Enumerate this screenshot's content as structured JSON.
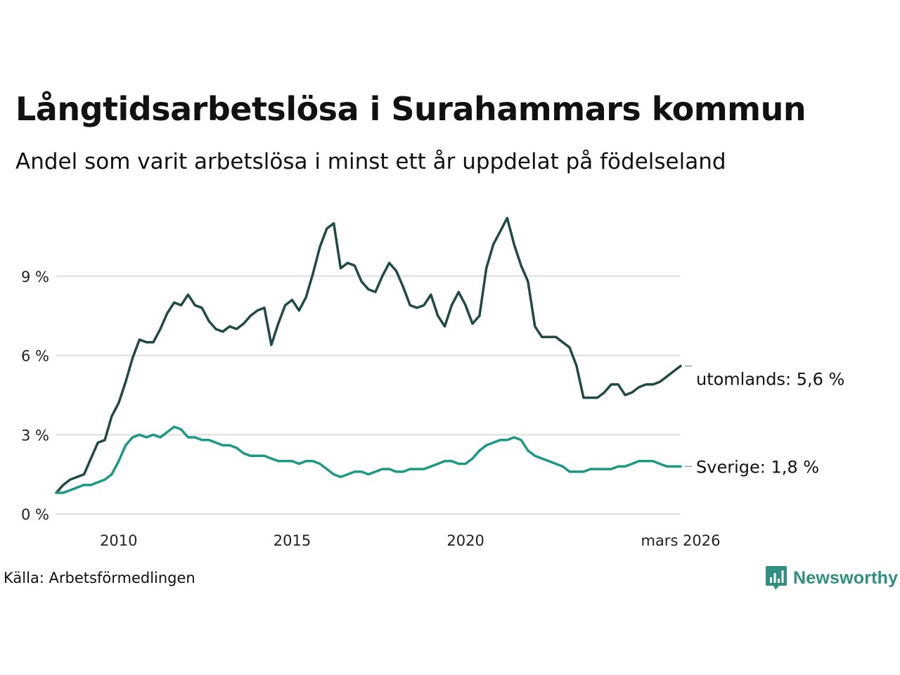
{
  "title": "Långtidsarbetslösa i Surahammars kommun",
  "subtitle": "Andel som varit arbetslösa i minst ett år uppdelat på födelseland",
  "source": "Källa: Arbetsförmedlingen",
  "brand": "Newsworthy",
  "colors": {
    "utomlands": "#1f4a45",
    "sverige": "#1b9984",
    "grid": "#dddddd",
    "brand": "#2f8f80"
  },
  "chart_data": {
    "type": "line",
    "title": "Långtidsarbetslösa i Surahammars kommun",
    "xlabel": "",
    "ylabel": "",
    "xlim": [
      2008.2,
      2026.2
    ],
    "ylim": [
      0,
      12
    ],
    "y_ticks": [
      0,
      3,
      6,
      9
    ],
    "y_tick_labels": [
      "0 %",
      "3 %",
      "6 %",
      "9 %"
    ],
    "x_ticks": [
      2010,
      2015,
      2020,
      2026.2
    ],
    "x_tick_labels": [
      "2010",
      "2015",
      "2020",
      "mars 2026"
    ],
    "grid": true,
    "series": [
      {
        "name": "utomlands",
        "end_label": "utomlands: 5,6 %",
        "color": "#1f4a45",
        "x": [
          2008.2,
          2008.4,
          2008.6,
          2008.8,
          2009.0,
          2009.2,
          2009.4,
          2009.6,
          2009.8,
          2010.0,
          2010.2,
          2010.4,
          2010.6,
          2010.8,
          2011.0,
          2011.2,
          2011.4,
          2011.6,
          2011.8,
          2012.0,
          2012.2,
          2012.4,
          2012.6,
          2012.8,
          2013.0,
          2013.2,
          2013.4,
          2013.6,
          2013.8,
          2014.0,
          2014.2,
          2014.4,
          2014.6,
          2014.8,
          2015.0,
          2015.2,
          2015.4,
          2015.6,
          2015.8,
          2016.0,
          2016.2,
          2016.4,
          2016.6,
          2016.8,
          2017.0,
          2017.2,
          2017.4,
          2017.6,
          2017.8,
          2018.0,
          2018.2,
          2018.4,
          2018.6,
          2018.8,
          2019.0,
          2019.2,
          2019.4,
          2019.6,
          2019.8,
          2020.0,
          2020.2,
          2020.4,
          2020.6,
          2020.8,
          2021.0,
          2021.2,
          2021.4,
          2021.6,
          2021.8,
          2022.0,
          2022.2,
          2022.4,
          2022.6,
          2022.8,
          2023.0,
          2023.2,
          2023.4,
          2023.6,
          2023.8,
          2024.0,
          2024.2,
          2024.4,
          2024.6,
          2024.8,
          2025.0,
          2025.2,
          2025.4,
          2025.6,
          2025.8,
          2026.0,
          2026.2
        ],
        "values": [
          0.8,
          1.1,
          1.3,
          1.4,
          1.5,
          2.1,
          2.7,
          2.8,
          3.7,
          4.2,
          5.0,
          5.9,
          6.6,
          6.5,
          6.5,
          7.0,
          7.6,
          8.0,
          7.9,
          8.3,
          7.9,
          7.8,
          7.3,
          7.0,
          6.9,
          7.1,
          7.0,
          7.2,
          7.5,
          7.7,
          7.8,
          6.4,
          7.2,
          7.9,
          8.1,
          7.7,
          8.2,
          9.1,
          10.1,
          10.8,
          11.0,
          9.3,
          9.5,
          9.4,
          8.8,
          8.5,
          8.4,
          9.0,
          9.5,
          9.2,
          8.6,
          7.9,
          7.8,
          7.9,
          8.3,
          7.5,
          7.1,
          7.9,
          8.4,
          7.9,
          7.2,
          7.5,
          9.3,
          10.2,
          10.7,
          11.2,
          10.2,
          9.4,
          8.8,
          7.1,
          6.7,
          6.7,
          6.7,
          6.5,
          6.3,
          5.6,
          4.4,
          4.4,
          4.4,
          4.6,
          4.9,
          4.9,
          4.5,
          4.6,
          4.8,
          4.9,
          4.9,
          5.0,
          5.2,
          5.4,
          5.6
        ]
      },
      {
        "name": "Sverige",
        "end_label": "Sverige: 1,8 %",
        "color": "#1b9984",
        "x": [
          2008.2,
          2008.4,
          2008.6,
          2008.8,
          2009.0,
          2009.2,
          2009.4,
          2009.6,
          2009.8,
          2010.0,
          2010.2,
          2010.4,
          2010.6,
          2010.8,
          2011.0,
          2011.2,
          2011.4,
          2011.6,
          2011.8,
          2012.0,
          2012.2,
          2012.4,
          2012.6,
          2012.8,
          2013.0,
          2013.2,
          2013.4,
          2013.6,
          2013.8,
          2014.0,
          2014.2,
          2014.4,
          2014.6,
          2014.8,
          2015.0,
          2015.2,
          2015.4,
          2015.6,
          2015.8,
          2016.0,
          2016.2,
          2016.4,
          2016.6,
          2016.8,
          2017.0,
          2017.2,
          2017.4,
          2017.6,
          2017.8,
          2018.0,
          2018.2,
          2018.4,
          2018.6,
          2018.8,
          2019.0,
          2019.2,
          2019.4,
          2019.6,
          2019.8,
          2020.0,
          2020.2,
          2020.4,
          2020.6,
          2020.8,
          2021.0,
          2021.2,
          2021.4,
          2021.6,
          2021.8,
          2022.0,
          2022.2,
          2022.4,
          2022.6,
          2022.8,
          2023.0,
          2023.2,
          2023.4,
          2023.6,
          2023.8,
          2024.0,
          2024.2,
          2024.4,
          2024.6,
          2024.8,
          2025.0,
          2025.2,
          2025.4,
          2025.6,
          2025.8,
          2026.0,
          2026.2
        ],
        "values": [
          0.8,
          0.8,
          0.9,
          1.0,
          1.1,
          1.1,
          1.2,
          1.3,
          1.5,
          2.0,
          2.6,
          2.9,
          3.0,
          2.9,
          3.0,
          2.9,
          3.1,
          3.3,
          3.2,
          2.9,
          2.9,
          2.8,
          2.8,
          2.7,
          2.6,
          2.6,
          2.5,
          2.3,
          2.2,
          2.2,
          2.2,
          2.1,
          2.0,
          2.0,
          2.0,
          1.9,
          2.0,
          2.0,
          1.9,
          1.7,
          1.5,
          1.4,
          1.5,
          1.6,
          1.6,
          1.5,
          1.6,
          1.7,
          1.7,
          1.6,
          1.6,
          1.7,
          1.7,
          1.7,
          1.8,
          1.9,
          2.0,
          2.0,
          1.9,
          1.9,
          2.1,
          2.4,
          2.6,
          2.7,
          2.8,
          2.8,
          2.9,
          2.8,
          2.4,
          2.2,
          2.1,
          2.0,
          1.9,
          1.8,
          1.6,
          1.6,
          1.6,
          1.7,
          1.7,
          1.7,
          1.7,
          1.8,
          1.8,
          1.9,
          2.0,
          2.0,
          2.0,
          1.9,
          1.8,
          1.8,
          1.8
        ]
      }
    ]
  }
}
